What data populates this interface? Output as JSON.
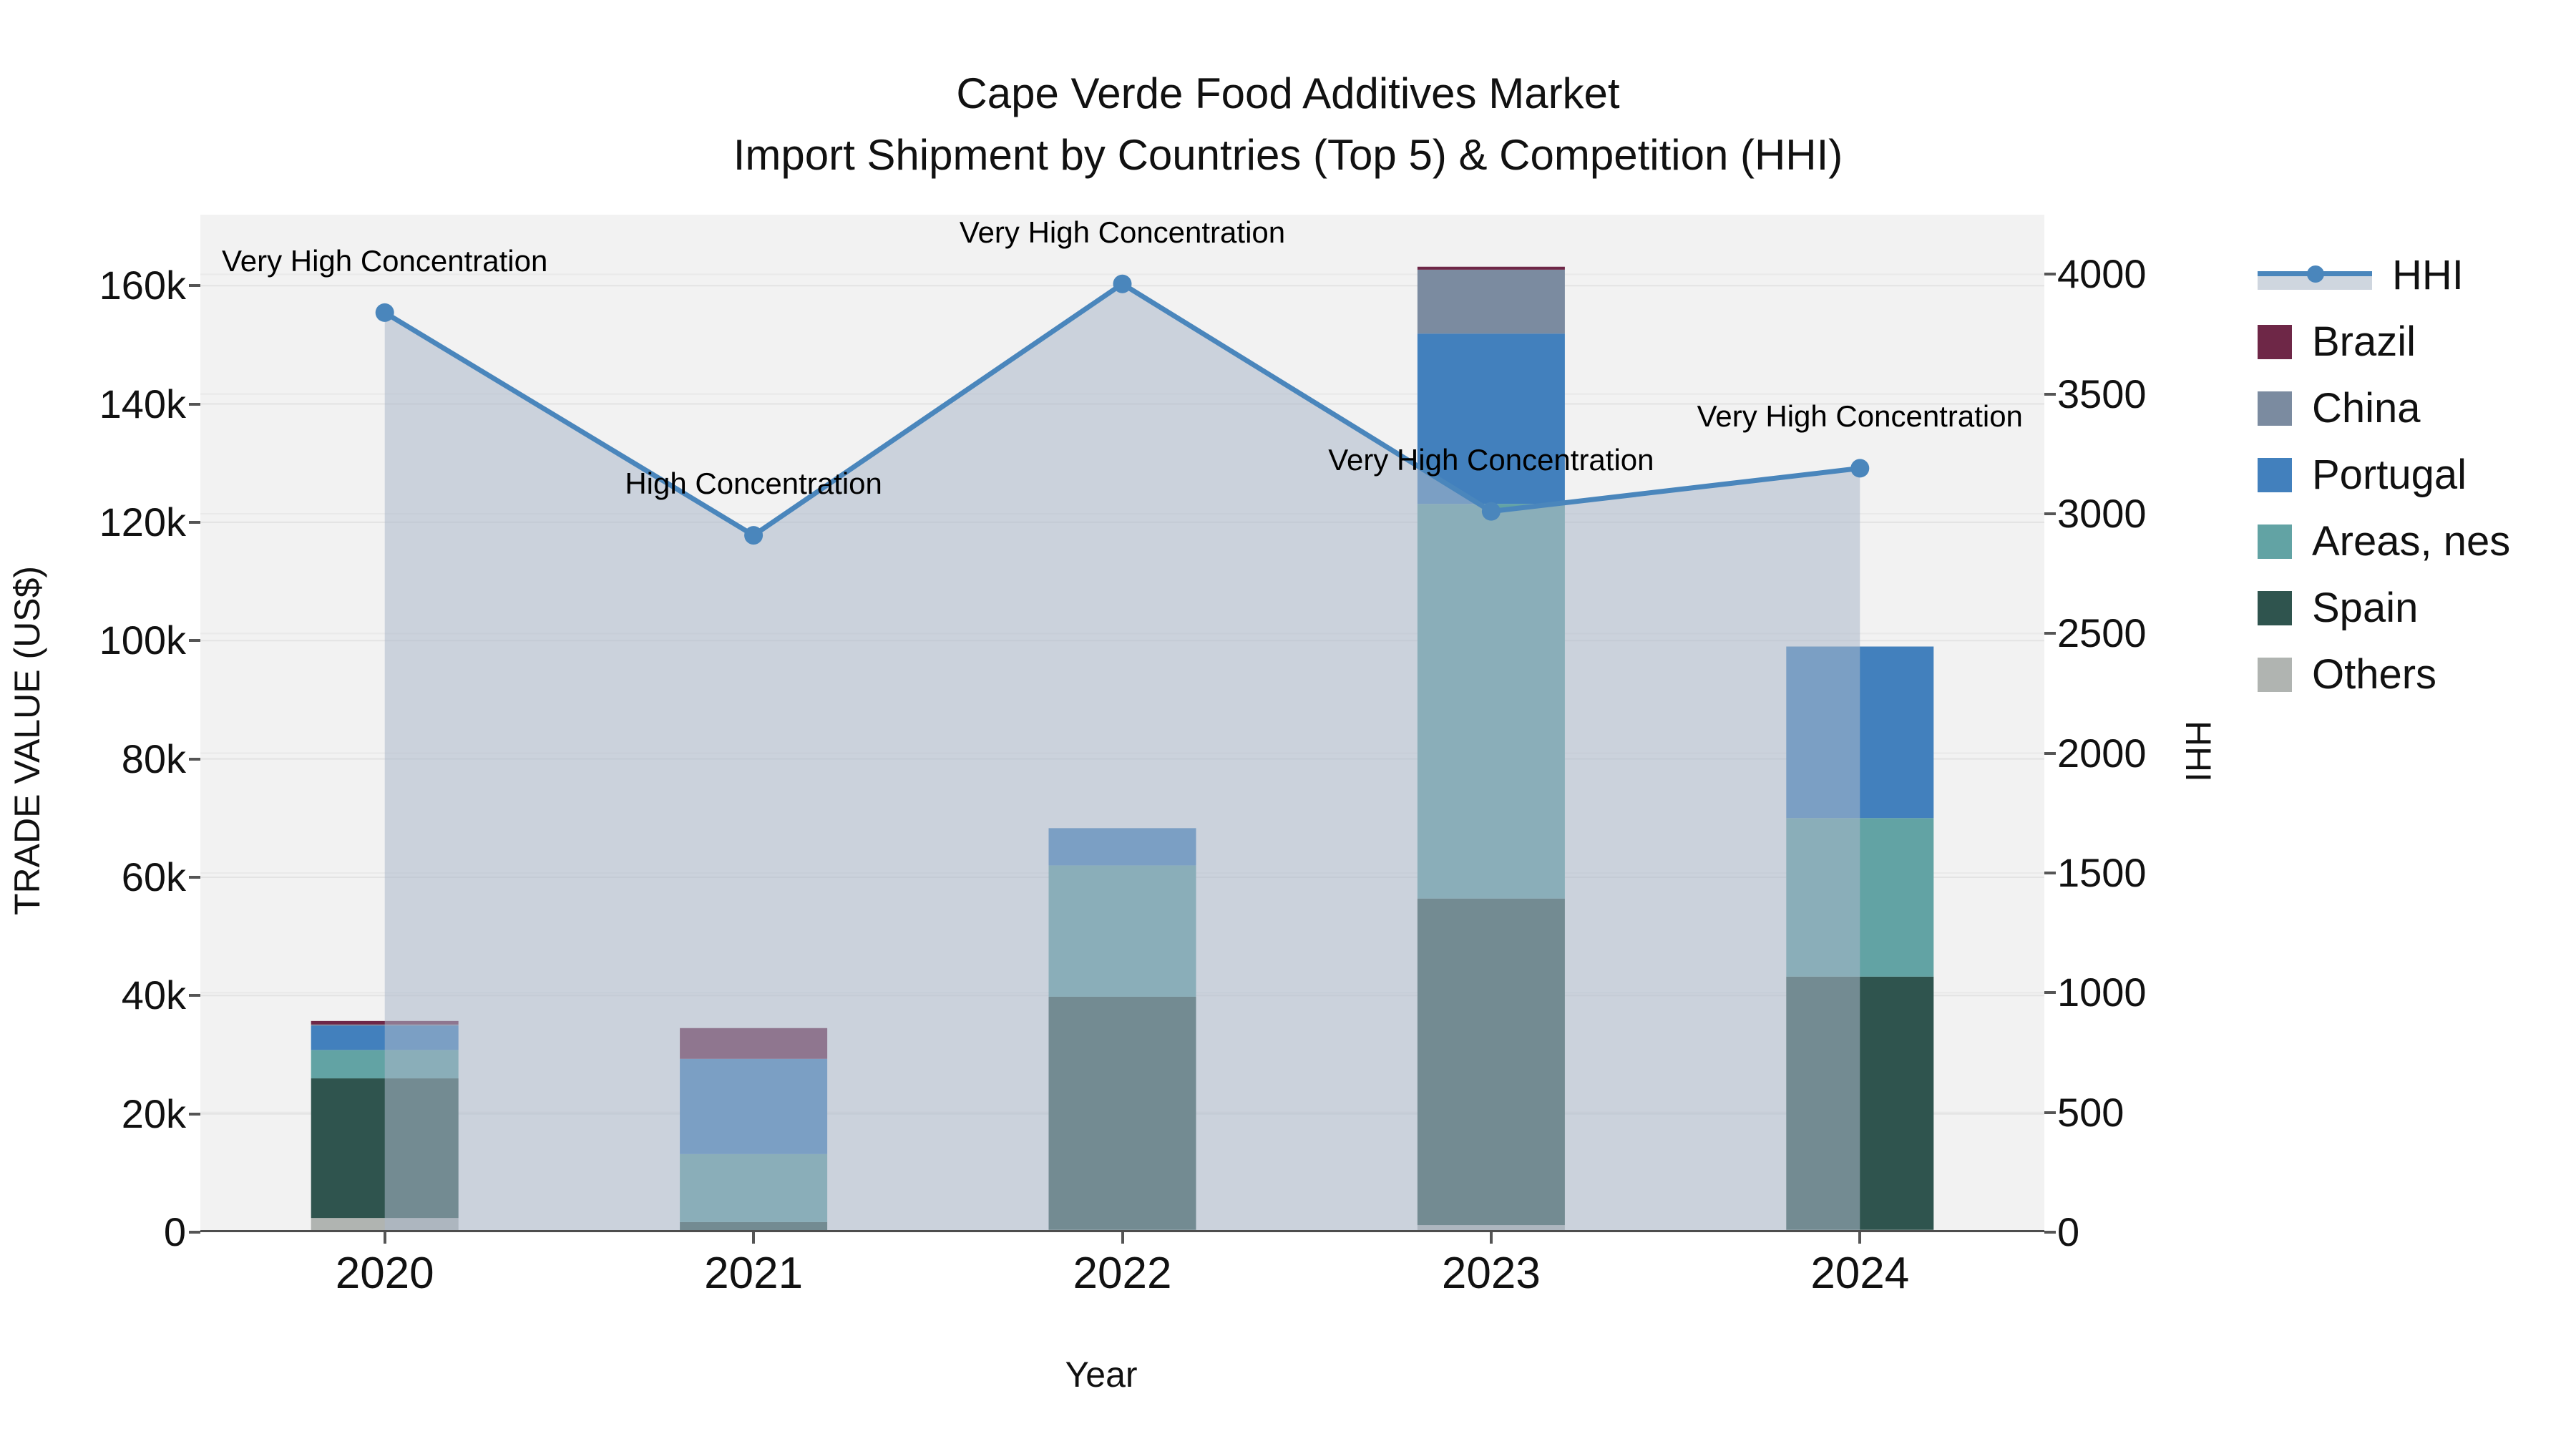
{
  "chart_data": {
    "type": "combo-stacked-bar-line",
    "title_line1": "Cape Verde Food Additives Market",
    "title_line2": "Import Shipment by Countries (Top 5) & Competition (HHI)",
    "xlabel": "Year",
    "ylabel_left": "TRADE VALUE (US$)",
    "ylabel_right": "HHI",
    "categories": [
      "2020",
      "2021",
      "2022",
      "2023",
      "2024"
    ],
    "series": [
      {
        "name": "Others",
        "color": "#b0b4b1",
        "values_k": [
          2.4,
          0.0,
          0.4,
          1.2,
          0.4
        ]
      },
      {
        "name": "Spain",
        "color": "#2f544e",
        "values_k": [
          23.6,
          1.7,
          39.4,
          55.2,
          42.8
        ]
      },
      {
        "name": "Areas, nes",
        "color": "#62a3a4",
        "values_k": [
          4.8,
          11.5,
          22.2,
          66.7,
          26.8
        ]
      },
      {
        "name": "Portugal",
        "color": "#4280bd",
        "values_k": [
          4.1,
          16.1,
          6.3,
          28.8,
          29.0
        ]
      },
      {
        "name": "China",
        "color": "#7b8ba0",
        "values_k": [
          0.2,
          0.0,
          0.0,
          10.8,
          0.0
        ]
      },
      {
        "name": "Brazil",
        "color": "#6e2747",
        "values_k": [
          0.6,
          5.2,
          0.0,
          0.5,
          0.0
        ]
      }
    ],
    "bar_totals_k": [
      35.7,
      34.5,
      68.3,
      163.2,
      99.0
    ],
    "hhi": {
      "name": "HHI",
      "line_color": "#4a86bc",
      "fill_color": "rgba(171,184,203,0.55)",
      "values": [
        3840,
        2910,
        3960,
        3010,
        3190
      ]
    },
    "annotations": [
      "Very High Concentration",
      "High Concentration",
      "Very High Concentration",
      "Very High Concentration",
      "Very High Concentration"
    ],
    "y_left": {
      "ticks": [
        "0",
        "20k",
        "40k",
        "60k",
        "80k",
        "100k",
        "120k",
        "140k",
        "160k"
      ],
      "tick_step_k": 20,
      "lim_k": 172
    },
    "y_right": {
      "ticks": [
        "0",
        "500",
        "1000",
        "1500",
        "2000",
        "2500",
        "3000",
        "3500",
        "4000"
      ],
      "tick_step": 500,
      "lim": 4249
    },
    "legend_order": [
      "HHI",
      "Brazil",
      "China",
      "Portugal",
      "Areas, nes",
      "Spain",
      "Others"
    ],
    "grid_color": "#e3e3e3",
    "plot_bg_color": "#f2f2f2",
    "axis_line_color": "#4d4d4d"
  }
}
